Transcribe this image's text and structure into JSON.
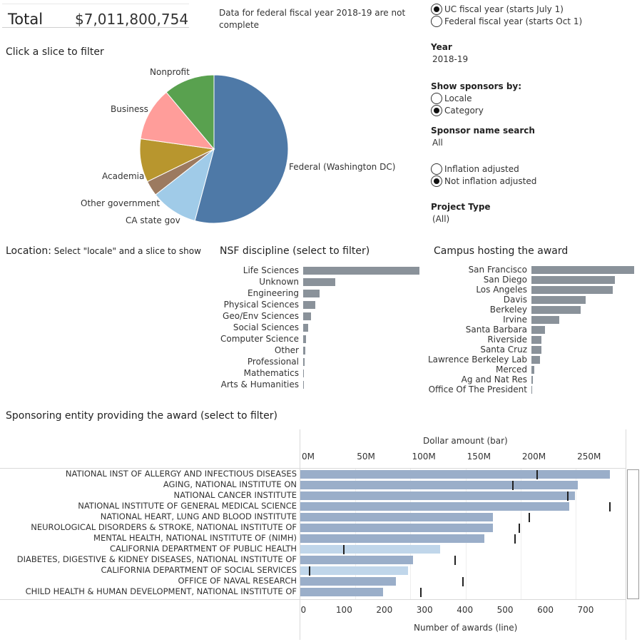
{
  "header": {
    "total_label": "Total",
    "total_value": "$7,011,800,754",
    "note": "Data for federal fiscal year 2018-19 are not complete"
  },
  "fiscal": {
    "options": [
      {
        "label": "UC fiscal year (starts July 1)",
        "selected": true
      },
      {
        "label": "Federal fiscal year (starts Oct 1)",
        "selected": false
      }
    ]
  },
  "year": {
    "label": "Year",
    "value": "2018-19"
  },
  "show_sponsors": {
    "label": "Show sponsors by:",
    "options": [
      {
        "label": "Locale",
        "selected": false
      },
      {
        "label": "Category",
        "selected": true
      }
    ]
  },
  "sponsor_search": {
    "label": "Sponsor name search",
    "value": "All"
  },
  "inflation": {
    "options": [
      {
        "label": "Inflation adjusted",
        "selected": false
      },
      {
        "label": "Not inflation adjusted",
        "selected": true
      }
    ]
  },
  "project_type": {
    "label": "Project Type",
    "value": "(All)"
  },
  "pie": {
    "title": "Click a slice to filter",
    "colors": [
      "#4e79a7",
      "#a0cbe8",
      "#9c7a60",
      "#b8962e",
      "#ff9d9a",
      "#59a14f"
    ],
    "labels": [
      "Federal (Washington DC)",
      "CA state gov",
      "Other government",
      "Academia",
      "Business",
      "Nonprofit"
    ]
  },
  "location": {
    "title_bold": "Location:",
    "title_rest": " Select \"locale\" and a slice to show"
  },
  "nsf": {
    "title": "NSF discipline (select to filter)",
    "items": [
      "Life Sciences",
      "Unknown",
      "Engineering",
      "Physical Sciences",
      "Geo/Env Sciences",
      "Social Sciences",
      "Computer Science",
      "Other",
      "Professional",
      "Mathematics",
      "Arts & Humanities"
    ],
    "fill": [
      1.0,
      0.275,
      0.14,
      0.105,
      0.07,
      0.04,
      0.022,
      0.018,
      0.012,
      0.008,
      0.004
    ]
  },
  "campus": {
    "title": "Campus hosting the award",
    "items": [
      "San Francisco",
      "San Diego",
      "Los Angeles",
      "Davis",
      "Berkeley",
      "Irvine",
      "Santa Barbara",
      "Riverside",
      "Santa Cruz",
      "Lawrence Berkeley Lab",
      "Merced",
      "Ag and Nat Res",
      "Office Of The President"
    ],
    "fill": [
      1.0,
      0.81,
      0.79,
      0.53,
      0.48,
      0.27,
      0.13,
      0.1,
      0.095,
      0.085,
      0.025,
      0.012,
      0.004
    ]
  },
  "sponsoring": {
    "title": "Sponsoring entity providing the award (select to filter)",
    "top_axis_title": "Dollar amount (bar)",
    "top_ticks": [
      "0M",
      "50M",
      "100M",
      "150M",
      "200M",
      "250M"
    ],
    "bottom_axis_title": "Number of awards (line)",
    "bottom_ticks": [
      "0",
      "100",
      "200",
      "300",
      "400",
      "500",
      "600",
      "700"
    ],
    "colors": {
      "bar": "#9aaec9",
      "bar_light": "#c0d6ea",
      "tick": "#222222"
    }
  },
  "chart_data": {
    "type": "bar",
    "categories": [
      "NATIONAL INST OF ALLERGY AND INFECTIOUS DISEASES",
      "AGING, NATIONAL INSTITUTE ON",
      "NATIONAL CANCER INSTITUTE",
      "NATIONAL INSTITUTE OF GENERAL MEDICAL SCIENCE",
      "NATIONAL HEART, LUNG AND BLOOD INSTITUTE",
      "NEUROLOGICAL DISORDERS & STROKE, NATIONAL INSTITUTE OF",
      "MENTAL HEALTH, NATIONAL INSTITUTE OF (NIMH)",
      "CALIFORNIA DEPARTMENT OF PUBLIC HEALTH",
      "DIABETES, DIGESTIVE & KIDNEY DISEASES, NATIONAL INSTITUTE OF",
      "CALIFORNIA DEPARTMENT OF SOCIAL SERVICES",
      "OFFICE OF NAVAL RESEARCH",
      "CHILD HEALTH & HUMAN DEVELOPMENT, NATIONAL INSTITUTE OF"
    ],
    "series": [
      {
        "name": "Dollar amount (bar)",
        "values": [
          281,
          252,
          249,
          244,
          175,
          175,
          167,
          127,
          102,
          98,
          87,
          75
        ]
      },
      {
        "name": "Number of awards (line)",
        "values": [
          580,
          520,
          655,
          760,
          560,
          535,
          525,
          100,
          375,
          15,
          395,
          290
        ]
      }
    ],
    "xlim_dollars_M": [
      0,
      290
    ],
    "xlim_awards": [
      0,
      800
    ],
    "xlabel": "Dollar amount (bar)",
    "xlabel2": "Number of awards (line)"
  }
}
